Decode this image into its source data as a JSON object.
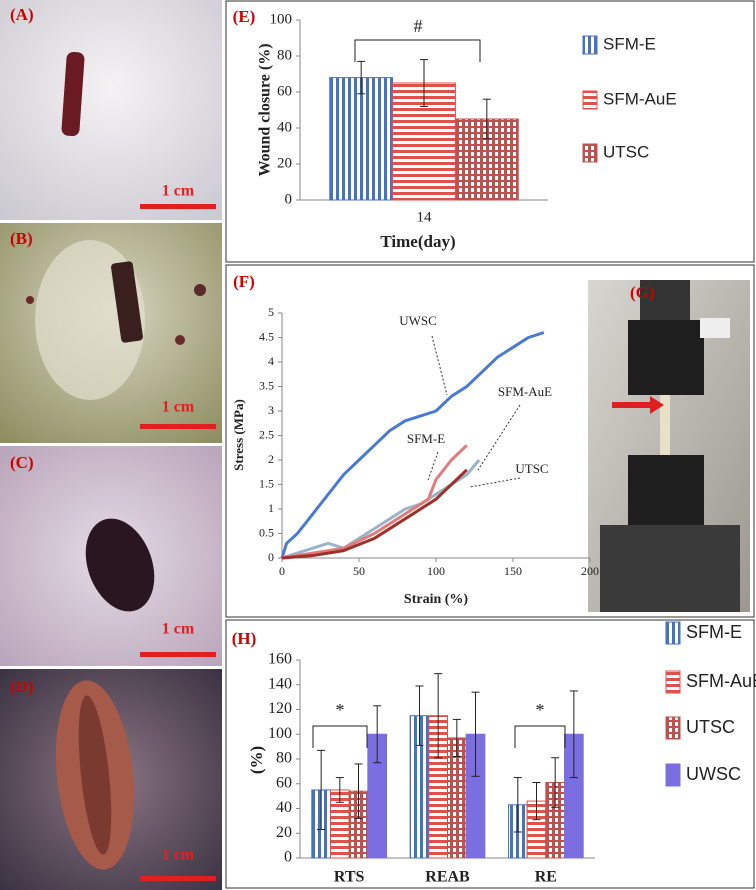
{
  "photos": [
    {
      "label": "(A)",
      "scale": "1 cm"
    },
    {
      "label": "(B)",
      "scale": "1 cm"
    },
    {
      "label": "(C)",
      "scale": "1 cm"
    },
    {
      "label": "(D)",
      "scale": "1 cm"
    },
    {
      "label": "(G)"
    }
  ],
  "chart_data": [
    {
      "type": "bar",
      "panel": "(E)",
      "ylabel": "Wound closure  (%)",
      "xlabel": "Time(day)",
      "categories": [
        "14"
      ],
      "ylim": [
        0,
        100
      ],
      "yticks": [
        0,
        20,
        40,
        60,
        80,
        100
      ],
      "annotations": [
        "#"
      ],
      "series": [
        {
          "name": "SFM-E",
          "color": "#4472c4",
          "pattern": "vertical",
          "values": [
            68
          ],
          "errors": [
            9
          ]
        },
        {
          "name": "SFM-AuE",
          "color": "#e0514a",
          "pattern": "horizontal",
          "values": [
            65
          ],
          "errors": [
            13
          ]
        },
        {
          "name": "UTSC",
          "color": "#c0504d",
          "pattern": "grid",
          "values": [
            45
          ],
          "errors": [
            11
          ]
        }
      ]
    },
    {
      "type": "line",
      "panel": "(F)",
      "ylabel": "Stress (MPa)",
      "xlabel": "Strain (%)",
      "xlim": [
        0,
        200
      ],
      "xticks": [
        0,
        50,
        100,
        150,
        200
      ],
      "ylim": [
        0,
        5
      ],
      "yticks": [
        0,
        0.5,
        1,
        1.5,
        2,
        2.5,
        3,
        3.5,
        4,
        4.5,
        5
      ],
      "annotations": [
        "UWSC",
        "SFM-AuE",
        "SFM-E",
        "UTSC"
      ],
      "series": [
        {
          "name": "UWSC",
          "color": "#4a7bd0",
          "x": [
            0,
            3,
            10,
            20,
            30,
            40,
            50,
            60,
            70,
            80,
            90,
            100,
            110,
            120,
            130,
            140,
            150,
            160,
            170
          ],
          "values": [
            0,
            0.3,
            0.5,
            0.9,
            1.3,
            1.7,
            2.0,
            2.3,
            2.6,
            2.8,
            2.9,
            3.0,
            3.3,
            3.5,
            3.8,
            4.1,
            4.3,
            4.5,
            4.6
          ]
        },
        {
          "name": "SFM-AuE",
          "color": "#9cb3c8",
          "x": [
            0,
            10,
            20,
            30,
            40,
            50,
            60,
            70,
            80,
            90,
            100,
            110,
            120,
            128
          ],
          "values": [
            0,
            0.1,
            0.2,
            0.3,
            0.2,
            0.4,
            0.6,
            0.8,
            1.0,
            1.1,
            1.3,
            1.5,
            1.7,
            2.0
          ]
        },
        {
          "name": "SFM-E",
          "color": "#e07c7c",
          "x": [
            0,
            20,
            40,
            60,
            80,
            95,
            100,
            110,
            120
          ],
          "values": [
            0,
            0.1,
            0.2,
            0.5,
            0.9,
            1.2,
            1.6,
            2.0,
            2.3
          ]
        },
        {
          "name": "UTSC",
          "color": "#a0302a",
          "x": [
            0,
            20,
            40,
            60,
            80,
            100,
            110,
            120
          ],
          "values": [
            0,
            0.05,
            0.15,
            0.4,
            0.8,
            1.2,
            1.5,
            1.8
          ]
        }
      ]
    },
    {
      "type": "bar",
      "panel": "(H)",
      "ylabel": "(%)",
      "categories": [
        "RTS",
        "REAB",
        "RE"
      ],
      "ylim": [
        0,
        160
      ],
      "yticks": [
        0,
        20,
        40,
        60,
        80,
        100,
        120,
        140,
        160
      ],
      "annotations": [
        "*",
        "*"
      ],
      "series": [
        {
          "name": "SFM-E",
          "color": "#4472c4",
          "pattern": "vertical",
          "values": [
            55,
            115,
            43
          ],
          "errors": [
            32,
            24,
            22
          ]
        },
        {
          "name": "SFM-AuE",
          "color": "#e0514a",
          "pattern": "horizontal",
          "values": [
            55,
            115,
            46
          ],
          "errors": [
            10,
            34,
            15
          ]
        },
        {
          "name": "UTSC",
          "color": "#c0504d",
          "pattern": "grid",
          "values": [
            54,
            97,
            61
          ],
          "errors": [
            22,
            15,
            20
          ]
        },
        {
          "name": "UWSC",
          "color": "#7b6ee0",
          "pattern": "solid",
          "values": [
            100,
            100,
            100
          ],
          "errors": [
            23,
            34,
            35
          ]
        }
      ]
    }
  ]
}
